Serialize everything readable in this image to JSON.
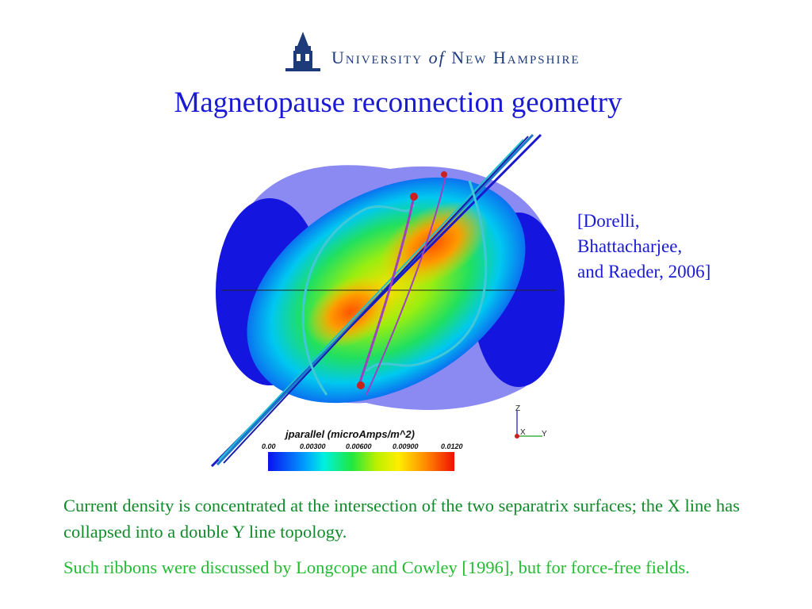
{
  "logo": {
    "text_pre": "University ",
    "text_of": "of",
    "text_post": " New Hampshire",
    "colors": {
      "navy": "#1d3a7a"
    },
    "icon": "tower-icon"
  },
  "title": "Magnetopause reconnection geometry",
  "citation": {
    "line1": "[Dorelli,",
    "line2": "Bhattacharjee,",
    "line3": "and Raeder, 2006]"
  },
  "figure": {
    "colorbar_title": "jparallel (microAmps/m^2)",
    "ticks": [
      "0.00",
      "0.00300",
      "0.00600",
      "0.00900",
      "0.0120"
    ],
    "axes": {
      "z": "Z",
      "x": "X",
      "y": "Y"
    }
  },
  "paragraphs": {
    "p1": "Current density is concentrated at the intersection of the two separatrix surfaces; the X line has collapsed into a double Y line topology.",
    "p2": "Such ribbons were discussed by Longcope and Cowley [1996], but for force-free fields."
  },
  "colors": {
    "title": "#1a1ad6",
    "p1": "#118a2a",
    "p2": "#22bb33"
  }
}
